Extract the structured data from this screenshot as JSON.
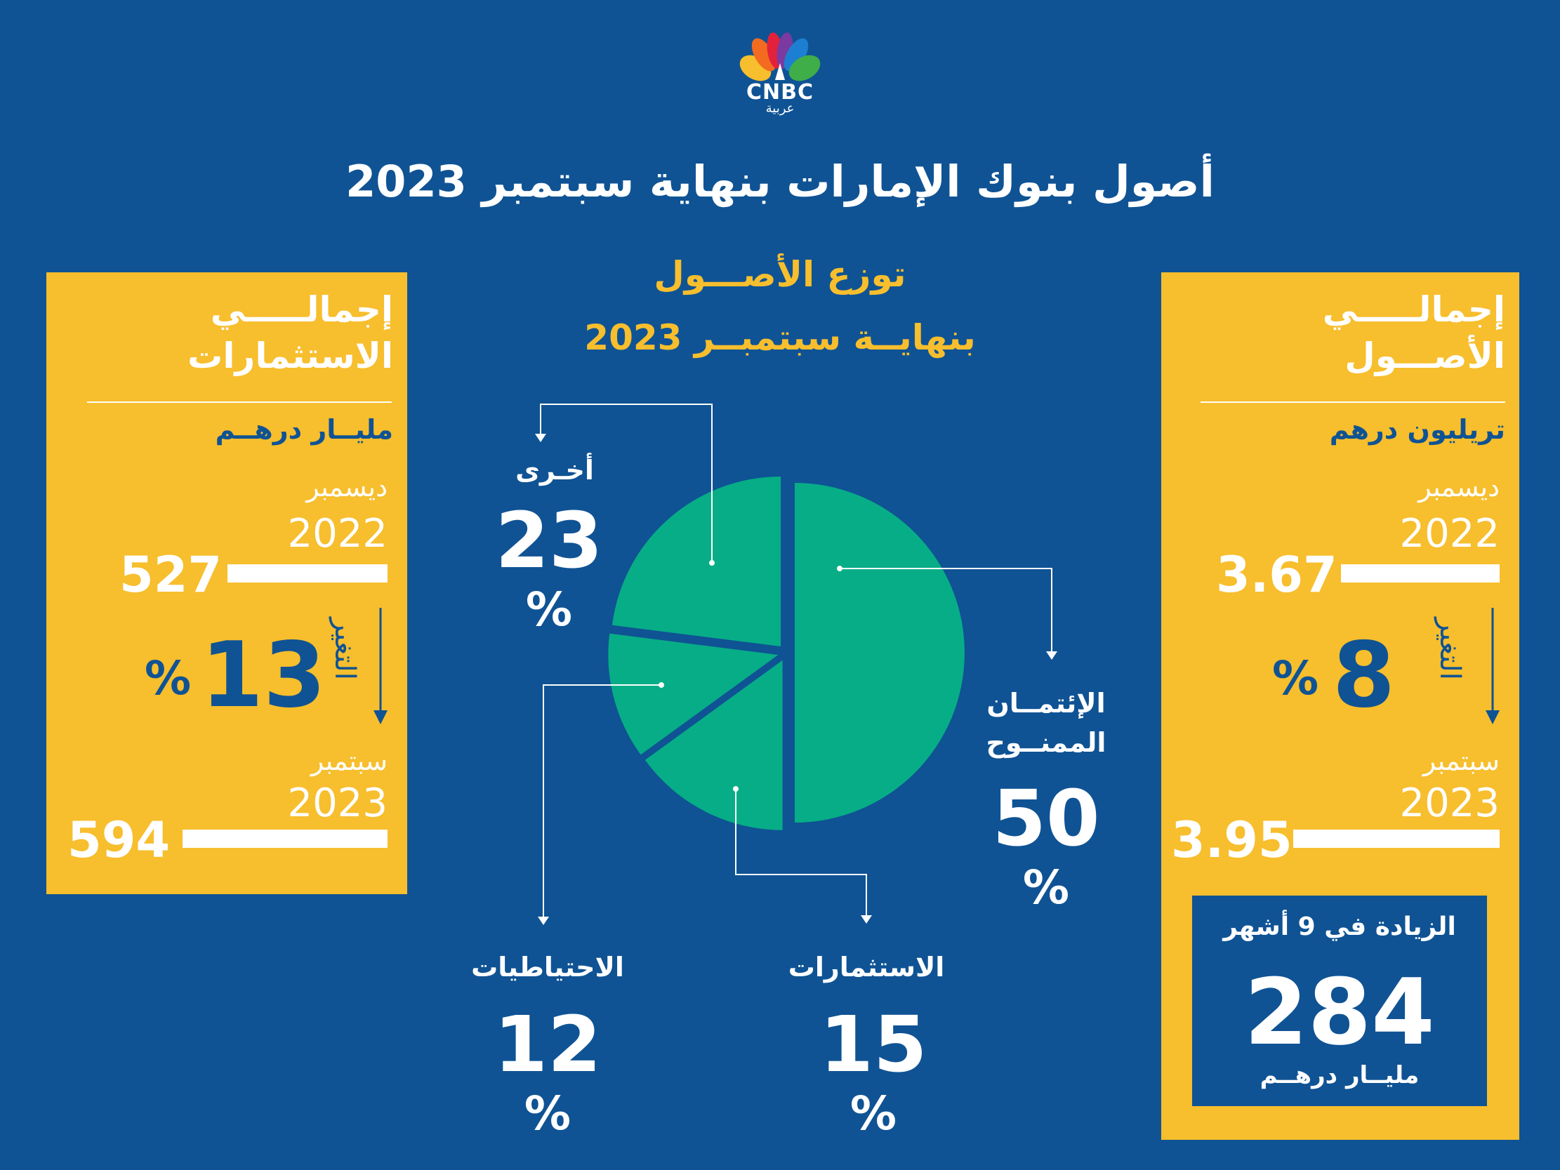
{
  "brand": {
    "name": "CNBC",
    "sub": "عربية"
  },
  "title": "أصول بنوك الإمارات بنهاية سبتمبر 2023",
  "chart_title": {
    "line1": "توزع الأصـــول",
    "line2": "بنهايــة سبتمبــر 2023"
  },
  "left_panel": {
    "heading_line1": "إجمالـــــي",
    "heading_line2": "الاستثمارات",
    "unit": "مليــار درهــم",
    "from": {
      "month": "ديسمبر",
      "year": "2022",
      "value": "527"
    },
    "change": {
      "label": "التغير",
      "value": "13",
      "sign": "%"
    },
    "to": {
      "month": "سبتمبر",
      "year": "2023",
      "value": "594"
    }
  },
  "right_panel": {
    "heading_line1": "إجمالـــــي",
    "heading_line2": "الأصـــول",
    "unit": "تريليون درهم",
    "from": {
      "month": "ديسمبر",
      "year": "2022",
      "value": "3.67"
    },
    "change": {
      "label": "التغير",
      "value": "8",
      "sign": "%"
    },
    "to": {
      "month": "سبتمبر",
      "year": "2023",
      "value": "3.95"
    },
    "increase": {
      "label": "الزيادة في 9 أشهر",
      "value": "284",
      "unit": "مليــار درهــم"
    }
  },
  "chart_data": {
    "type": "pie",
    "title": "توزع الأصـــول بنهايــة سبتمبــر 2023",
    "slices": [
      {
        "label": "الإئتمــان الممنــوح",
        "value": 50,
        "display": "50",
        "sign": "%"
      },
      {
        "label": "الاستثمارات",
        "value": 15,
        "display": "15",
        "sign": "%"
      },
      {
        "label": "الاحتياطيات",
        "value": 12,
        "display": "12",
        "sign": "%"
      },
      {
        "label": "أخـرى",
        "value": 23,
        "display": "23",
        "sign": "%"
      }
    ],
    "colors": {
      "slice": "#07ad86",
      "background": "#0f5394",
      "panel": "#f7be2d",
      "text_blue": "#0f5394"
    }
  }
}
